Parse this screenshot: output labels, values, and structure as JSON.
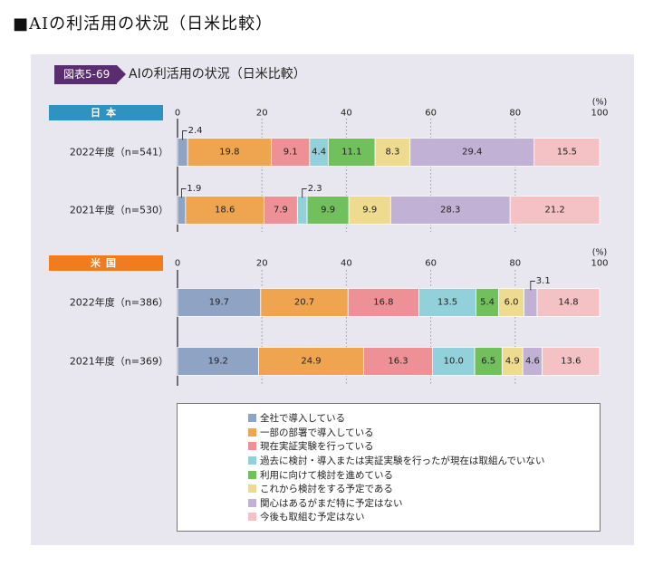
{
  "page_title": "■AIの利活用の状況（日米比較）",
  "figure": {
    "tag": "図表5-69",
    "title": "AIの利活用の状況（日米比較）"
  },
  "colors": [
    "#8fa4c4",
    "#efa550",
    "#ee9196",
    "#92d1da",
    "#72bf5d",
    "#efdb8f",
    "#c1b1d4",
    "#f4c2c4"
  ],
  "chart_data": {
    "type": "stacked-bar-horizontal",
    "unit_label": "(%)",
    "xlim": [
      0,
      100
    ],
    "ticks": [
      0,
      20,
      40,
      60,
      80,
      100
    ],
    "legend": [
      "全社で導入している",
      "一部の部署で導入している",
      "現在実証実験を行っている",
      "過去に検討・導入または実証実験を行ったが現在は取組んでいない",
      "利用に向けて検討を進めている",
      "これから検討をする予定である",
      "関心はあるがまだ特に予定はない",
      "今後も取組む予定はない"
    ],
    "groups": [
      {
        "name": "日本",
        "rows": [
          {
            "label": "2022年度（n=541）",
            "values": [
              2.4,
              19.8,
              9.1,
              4.4,
              11.1,
              8.3,
              29.4,
              15.5
            ]
          },
          {
            "label": "2021年度（n=530）",
            "values": [
              1.9,
              18.6,
              7.9,
              2.3,
              9.9,
              9.9,
              28.3,
              21.2
            ]
          }
        ]
      },
      {
        "name": "米国",
        "rows": [
          {
            "label": "2022年度（n=386）",
            "values": [
              19.7,
              20.7,
              16.8,
              13.5,
              5.4,
              6.0,
              3.1,
              14.8
            ]
          },
          {
            "label": "2021年度（n=369）",
            "values": [
              19.2,
              24.9,
              16.3,
              10.0,
              6.5,
              4.9,
              4.6,
              13.6
            ]
          }
        ]
      }
    ]
  }
}
